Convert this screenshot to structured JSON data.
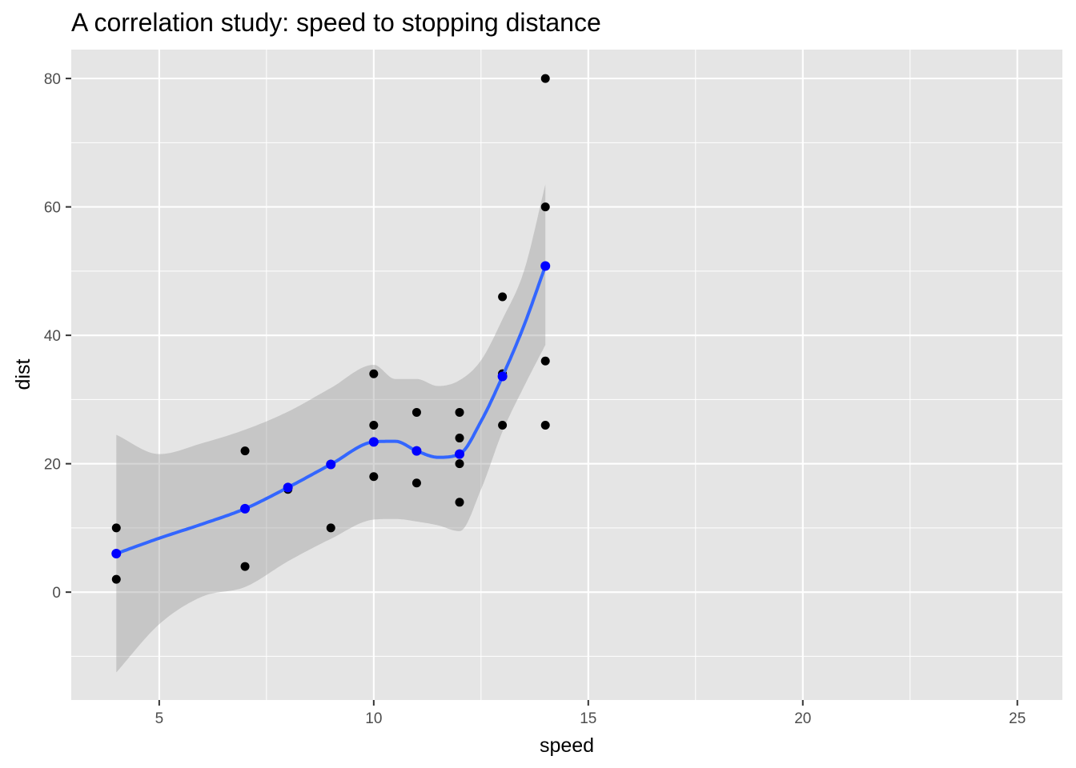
{
  "chart_data": {
    "type": "scatter",
    "title": "A correlation study: speed to stopping distance",
    "xlabel": "speed",
    "ylabel": "dist",
    "xlim": [
      2.95,
      26.05
    ],
    "ylim": [
      -16.8,
      84.5
    ],
    "x_ticks": [
      5,
      10,
      15,
      20,
      25
    ],
    "y_ticks": [
      0,
      20,
      40,
      60,
      80
    ],
    "x_tick_labels": [
      "5",
      "10",
      "15",
      "20",
      "25"
    ],
    "y_tick_labels": [
      "0",
      "20",
      "40",
      "60",
      "80"
    ],
    "grid": true,
    "legend": "none",
    "colors": {
      "panel": "#e5e5e5",
      "grid": "#ffffff",
      "points": "#000000",
      "smooth_line": "#3366ff",
      "smooth_band": "#bdbdbd",
      "fitted_points": "#0000ff"
    },
    "series": [
      {
        "kind": "points",
        "x": [
          4,
          4,
          7,
          7,
          8,
          9,
          10,
          10,
          10,
          11,
          11,
          12,
          12,
          12,
          12,
          13,
          13,
          13,
          13,
          14,
          14,
          14,
          14
        ],
        "y": [
          2,
          10,
          4,
          22,
          16,
          10,
          18,
          26,
          34,
          17,
          28,
          14,
          20,
          24,
          28,
          26,
          34,
          34,
          46,
          26,
          36,
          60,
          80
        ]
      },
      {
        "kind": "smooth",
        "x": [
          4,
          5,
          6,
          7,
          8,
          9,
          10,
          10.5,
          11,
          11.5,
          12,
          12.5,
          13,
          13.5,
          14
        ],
        "y": [
          6,
          8.4,
          10.6,
          13,
          16.3,
          19.9,
          23.4,
          23.5,
          22,
          21,
          21.5,
          26.6,
          33.6,
          41.5,
          50.8
        ],
        "ymin": [
          -12.5,
          -5,
          -0.7,
          0.8,
          4.8,
          8.3,
          11.3,
          11.4,
          11,
          10.4,
          9.5,
          16,
          25,
          32,
          38.5
        ],
        "ymax": [
          24.5,
          21.5,
          23.2,
          25.3,
          28.1,
          31.8,
          35.4,
          33.2,
          33.2,
          32.1,
          33,
          36.1,
          42.5,
          50,
          63.5
        ]
      },
      {
        "kind": "fitted_points",
        "x": [
          4,
          7,
          8,
          9,
          10,
          11,
          12,
          13,
          14
        ],
        "y": [
          6,
          13,
          16.3,
          19.9,
          23.4,
          22,
          21.5,
          33.6,
          50.8
        ]
      }
    ]
  }
}
